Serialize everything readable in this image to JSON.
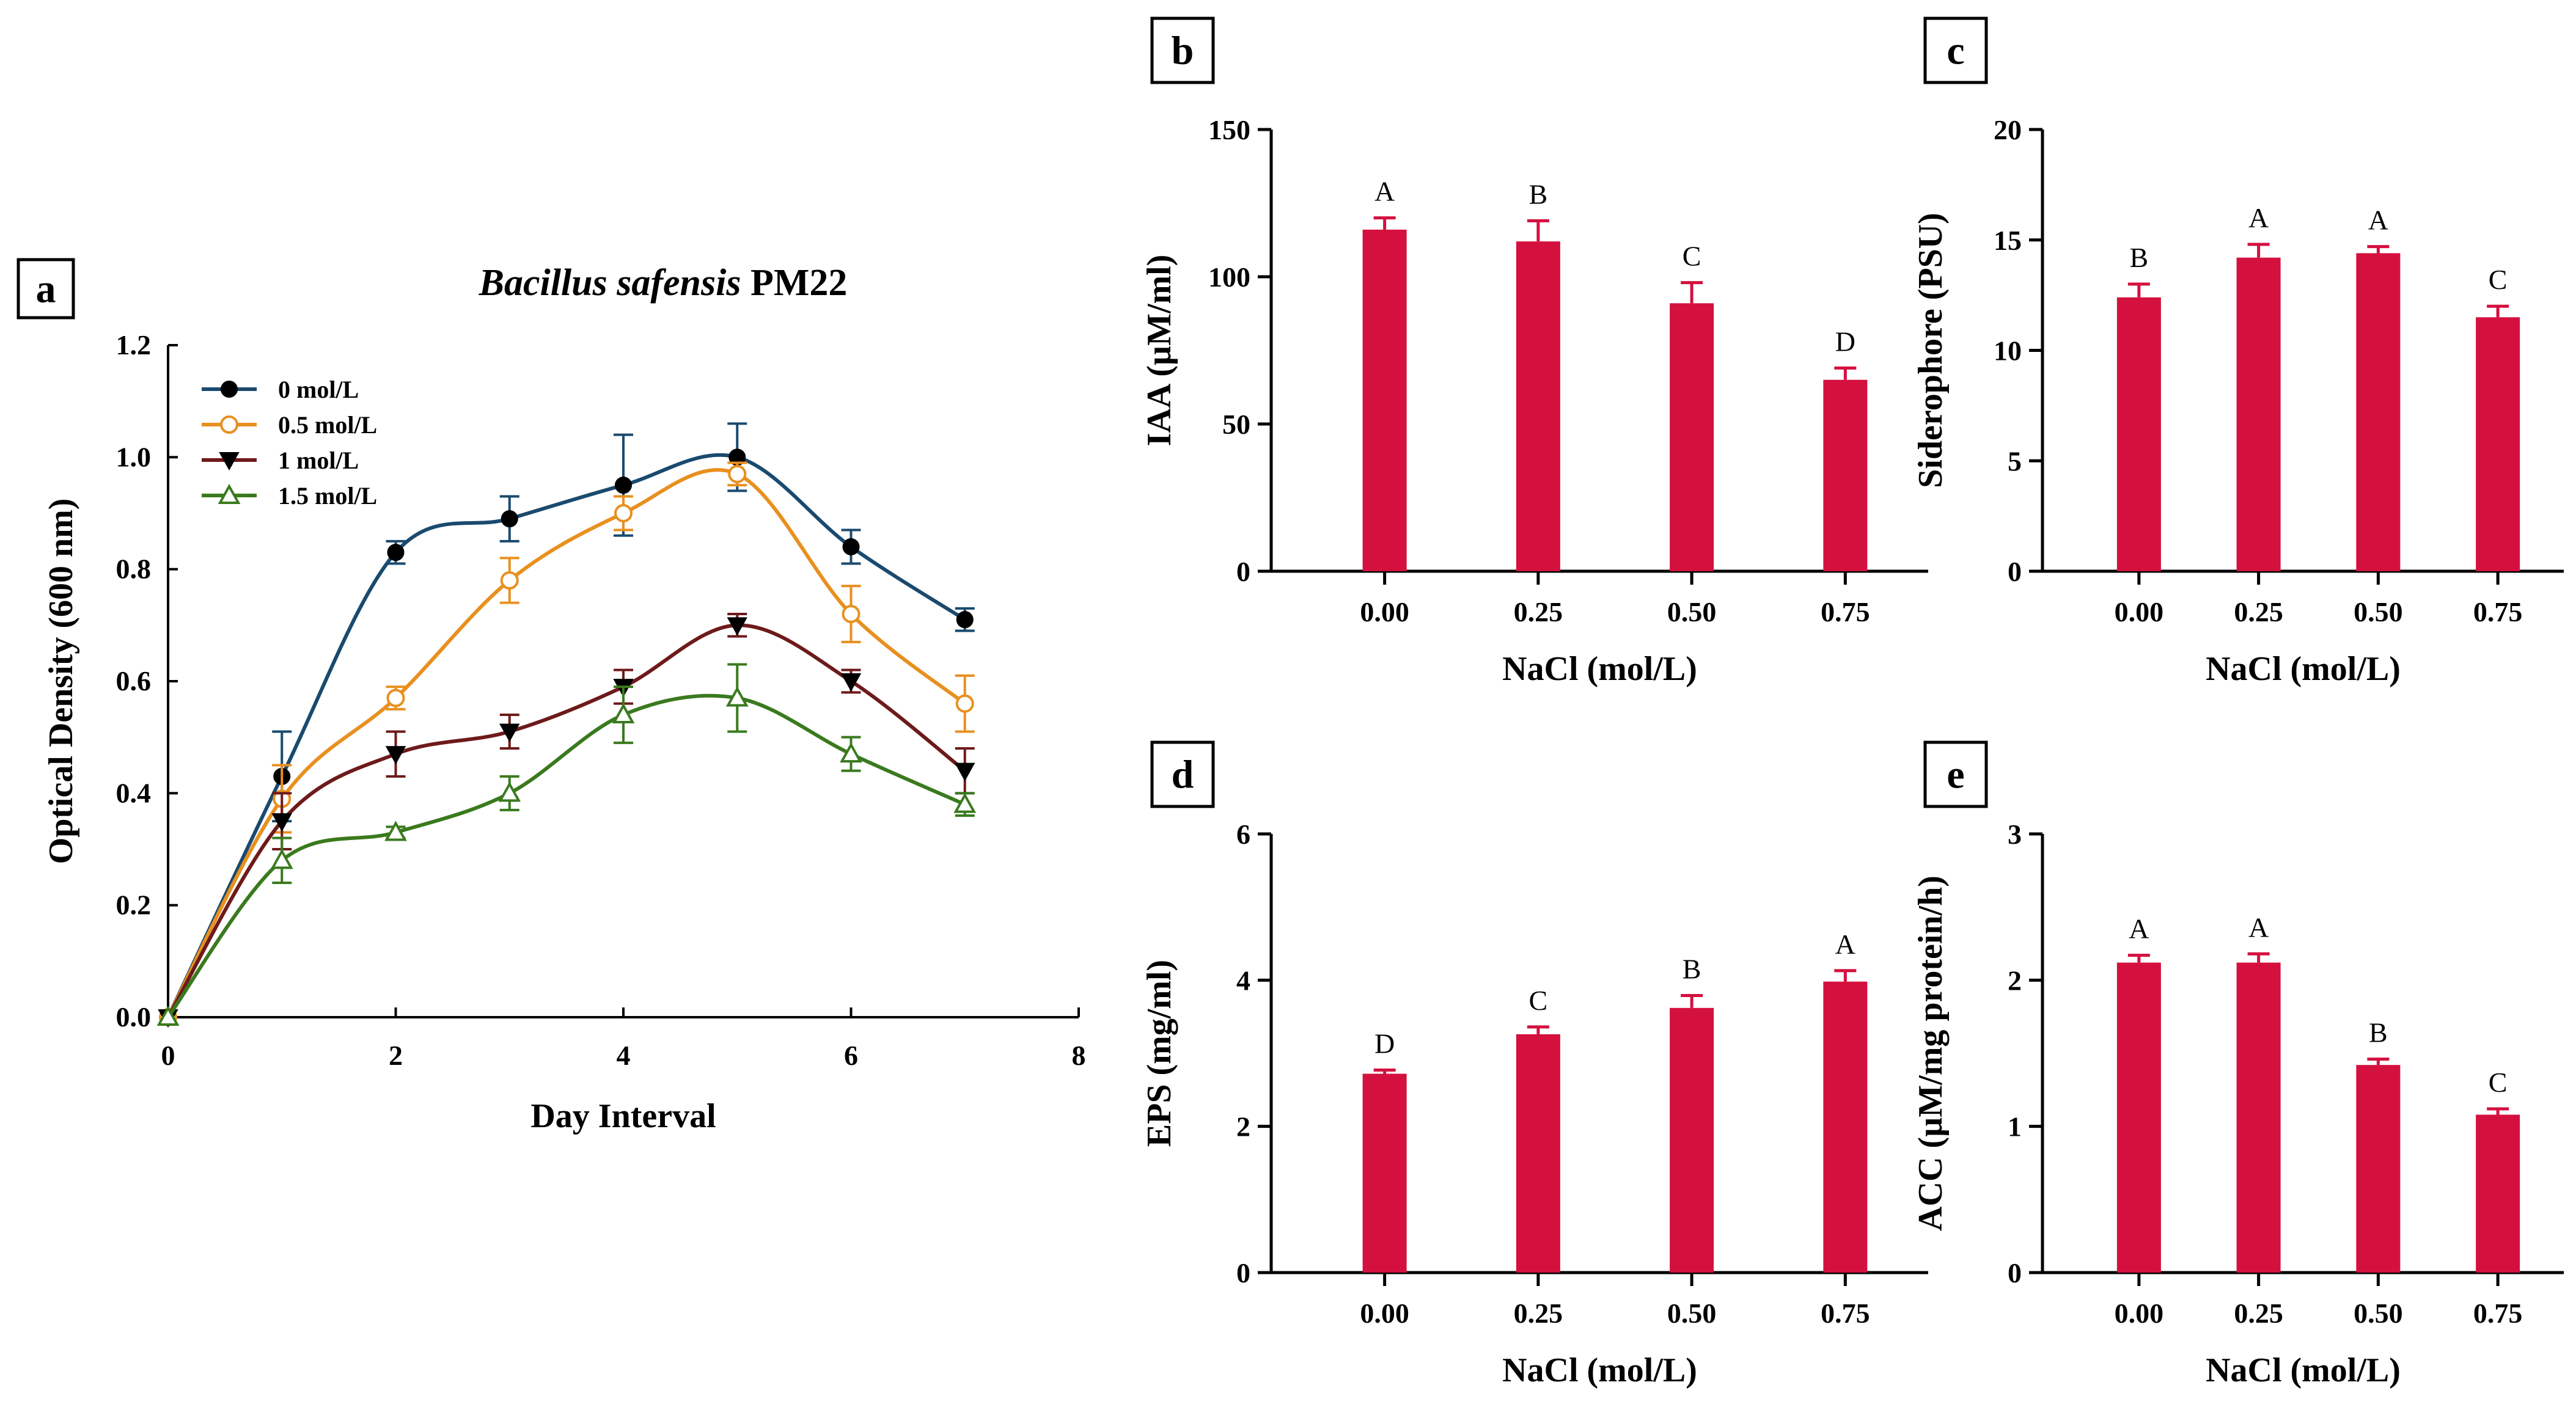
{
  "colors": {
    "bar": "#d4103f",
    "bar_error": "#d4103f",
    "axis": "#000000",
    "series_0": "#1a4a6e",
    "series_05": "#e8901f",
    "series_1": "#6e1a1a",
    "series_15": "#3a7a1e"
  },
  "chart_data": [
    {
      "id": "a",
      "panel_label": "a",
      "type": "line",
      "title_italic": "Bacillus safensis",
      "title_rest": " PM22",
      "xlabel": "Day Interval",
      "ylabel": "Optical Density (600 nm)",
      "xlim": [
        0,
        8
      ],
      "ylim": [
        0,
        1.2
      ],
      "xticks": [
        0,
        2,
        4,
        6,
        8
      ],
      "xtick_labels": [
        "0",
        "2",
        "4",
        "6",
        "8"
      ],
      "yticks": [
        0,
        0.2,
        0.4,
        0.6,
        0.8,
        1.0,
        1.2
      ],
      "ytick_labels": [
        "0.0",
        "0.2",
        "0.4",
        "0.6",
        "0.8",
        "1.0",
        "1.2"
      ],
      "legend_position": "top-left",
      "x": [
        0,
        1,
        2,
        3,
        4,
        5,
        6,
        7
      ],
      "series": [
        {
          "name": "0 mol/L",
          "marker": "filled-circle",
          "color": "#1a4a6e",
          "values": [
            0,
            0.43,
            0.83,
            0.89,
            0.95,
            1.0,
            0.84,
            0.71
          ],
          "errors": [
            0,
            0.08,
            0.02,
            0.04,
            0.09,
            0.06,
            0.03,
            0.02
          ]
        },
        {
          "name": "0.5 mol/L",
          "marker": "open-circle",
          "color": "#e8901f",
          "values": [
            0,
            0.39,
            0.57,
            0.78,
            0.9,
            0.97,
            0.72,
            0.56
          ],
          "errors": [
            0,
            0.06,
            0.02,
            0.04,
            0.03,
            0.02,
            0.05,
            0.05
          ]
        },
        {
          "name": "1 mol/L",
          "marker": "filled-triangle-down",
          "color": "#6e1a1a",
          "values": [
            0,
            0.35,
            0.47,
            0.51,
            0.59,
            0.7,
            0.6,
            0.44
          ],
          "errors": [
            0,
            0.05,
            0.04,
            0.03,
            0.03,
            0.02,
            0.02,
            0.04
          ]
        },
        {
          "name": "1.5 mol/L",
          "marker": "open-triangle-up",
          "color": "#3a7a1e",
          "values": [
            0,
            0.28,
            0.33,
            0.4,
            0.54,
            0.57,
            0.47,
            0.38
          ],
          "errors": [
            0,
            0.04,
            0.01,
            0.03,
            0.05,
            0.06,
            0.03,
            0.02
          ]
        }
      ]
    },
    {
      "id": "b",
      "panel_label": "b",
      "type": "bar",
      "xlabel": "NaCl (mol/L)",
      "ylabel": "IAA (µM/ml)",
      "categories": [
        "0.00",
        "0.25",
        "0.50",
        "0.75"
      ],
      "values": [
        116,
        112,
        91,
        65
      ],
      "errors": [
        4,
        7,
        7,
        4
      ],
      "significance": [
        "A",
        "B",
        "C",
        "D"
      ],
      "ylim": [
        0,
        150
      ],
      "yticks": [
        0,
        50,
        100,
        150
      ],
      "ytick_labels": [
        "0",
        "50",
        "100",
        "150"
      ]
    },
    {
      "id": "c",
      "panel_label": "c",
      "type": "bar",
      "xlabel": "NaCl (mol/L)",
      "ylabel": "Siderophore (PSU)",
      "categories": [
        "0.00",
        "0.25",
        "0.50",
        "0.75"
      ],
      "values": [
        12.4,
        14.2,
        14.4,
        11.5
      ],
      "errors": [
        0.6,
        0.6,
        0.3,
        0.5
      ],
      "significance": [
        "B",
        "A",
        "A",
        "C"
      ],
      "ylim": [
        0,
        20
      ],
      "yticks": [
        0,
        5,
        10,
        15,
        20
      ],
      "ytick_labels": [
        "0",
        "5",
        "10",
        "15",
        "20"
      ]
    },
    {
      "id": "d",
      "panel_label": "d",
      "type": "bar",
      "xlabel": "NaCl (mol/L)",
      "ylabel": "EPS (mg/ml)",
      "categories": [
        "0.00",
        "0.25",
        "0.50",
        "0.75"
      ],
      "values": [
        2.72,
        3.26,
        3.62,
        3.98
      ],
      "errors": [
        0.05,
        0.1,
        0.17,
        0.15
      ],
      "significance": [
        "D",
        "C",
        "B",
        "A"
      ],
      "ylim": [
        0,
        6
      ],
      "yticks": [
        0,
        2,
        4,
        6
      ],
      "ytick_labels": [
        "0",
        "2",
        "4",
        "6"
      ]
    },
    {
      "id": "e",
      "panel_label": "e",
      "type": "bar",
      "xlabel": "NaCl (mol/L)",
      "ylabel": "ACC (µM/mg protein/h)",
      "categories": [
        "0.00",
        "0.25",
        "0.50",
        "0.75"
      ],
      "values": [
        2.12,
        2.12,
        1.42,
        1.08
      ],
      "errors": [
        0.05,
        0.06,
        0.04,
        0.04
      ],
      "significance": [
        "A",
        "A",
        "B",
        "C"
      ],
      "ylim": [
        0,
        3
      ],
      "yticks": [
        0,
        1,
        2,
        3
      ],
      "ytick_labels": [
        "0",
        "1",
        "2",
        "3"
      ]
    }
  ]
}
